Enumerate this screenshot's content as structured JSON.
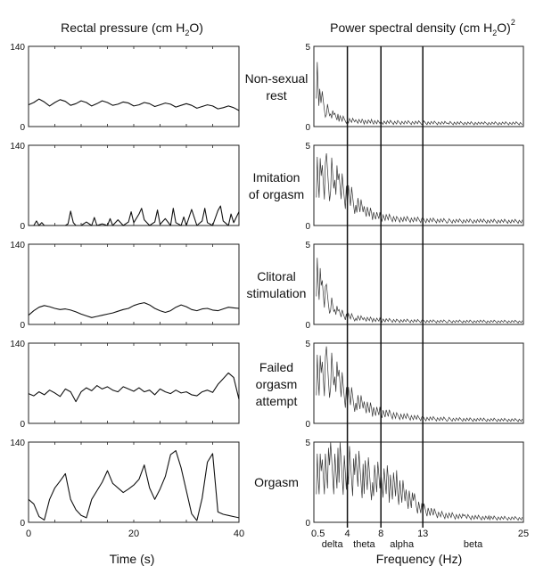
{
  "figure": {
    "left_title": {
      "main": "Rectal pressure (cm H",
      "sub": "2",
      "tail": "O)"
    },
    "right_title": {
      "main": "Power spectral density (cm H",
      "sub": "2",
      "tail": "O)",
      "sup": "2"
    },
    "left_xlabel": "Time (s)",
    "right_xlabel": "Frequency (Hz)",
    "conditions": [
      {
        "label_lines": [
          "Non-sexual",
          "rest"
        ]
      },
      {
        "label_lines": [
          "Imitation",
          "of orgasm"
        ]
      },
      {
        "label_lines": [
          "Clitoral",
          "stimulation"
        ]
      },
      {
        "label_lines": [
          "Failed",
          "orgasm",
          "attempt"
        ]
      },
      {
        "label_lines": [
          "Orgasm"
        ]
      }
    ],
    "band_labels": [
      "delta",
      "theta",
      "alpha",
      "beta"
    ]
  },
  "chart_data": [
    {
      "type": "line",
      "title": "Rectal pressure (cm H2O)",
      "xlabel": "Time (s)",
      "ylabel": "",
      "xlim": [
        0,
        40
      ],
      "ylim": [
        0,
        140
      ],
      "x_ticks": [
        0,
        20,
        40
      ],
      "y_ticks": [
        0,
        140
      ],
      "series": [
        {
          "x": [
            0,
            1,
            2,
            3,
            4,
            5,
            6,
            7,
            8,
            9,
            10,
            11,
            12,
            13,
            14,
            15,
            16,
            17,
            18,
            19,
            20,
            21,
            22,
            23,
            24,
            25,
            26,
            27,
            28,
            29,
            30,
            31,
            32,
            33,
            34,
            35,
            36,
            37,
            38,
            39,
            40
          ],
          "values": [
            38,
            42,
            48,
            43,
            36,
            42,
            47,
            44,
            37,
            40,
            45,
            42,
            36,
            40,
            45,
            42,
            37,
            39,
            43,
            41,
            36,
            38,
            42,
            40,
            35,
            38,
            41,
            39,
            34,
            37,
            40,
            37,
            32,
            35,
            38,
            36,
            31,
            33,
            36,
            33,
            28
          ]
        },
        {
          "x": [
            0,
            1,
            1.5,
            2,
            2.5,
            3,
            4,
            5,
            6,
            7,
            7.5,
            8,
            8.5,
            9,
            10,
            11,
            12,
            12.5,
            13,
            14,
            15,
            15.5,
            16,
            17,
            18,
            19,
            19.5,
            20,
            21,
            21.5,
            22,
            23,
            24,
            24.5,
            25,
            26,
            27,
            27.5,
            28,
            29,
            29.5,
            30,
            31,
            32,
            33,
            33.5,
            34,
            35,
            36,
            36.5,
            37,
            38,
            38.5,
            39,
            40
          ],
          "values": [
            0,
            0,
            8,
            0,
            5,
            0,
            0,
            0,
            0,
            0,
            3,
            25,
            5,
            0,
            0,
            6,
            0,
            14,
            0,
            3,
            0,
            12,
            0,
            10,
            0,
            6,
            24,
            5,
            20,
            30,
            10,
            0,
            6,
            27,
            2,
            12,
            0,
            30,
            5,
            0,
            15,
            0,
            28,
            0,
            8,
            30,
            5,
            0,
            26,
            34,
            8,
            0,
            20,
            5,
            24
          ]
        },
        {
          "x": [
            0,
            1,
            2,
            3,
            4,
            5,
            6,
            7,
            8,
            9,
            10,
            11,
            12,
            13,
            14,
            15,
            16,
            17,
            18,
            19,
            20,
            21,
            22,
            23,
            24,
            25,
            26,
            27,
            28,
            29,
            30,
            31,
            32,
            33,
            34,
            35,
            36,
            37,
            38,
            39,
            40
          ],
          "values": [
            16,
            24,
            30,
            33,
            31,
            28,
            26,
            27,
            25,
            22,
            18,
            15,
            12,
            14,
            16,
            18,
            20,
            23,
            26,
            28,
            33,
            36,
            38,
            34,
            28,
            24,
            21,
            24,
            30,
            34,
            31,
            26,
            24,
            27,
            28,
            25,
            24,
            27,
            30,
            29,
            28
          ]
        },
        {
          "x": [
            0,
            1,
            2,
            3,
            4,
            5,
            6,
            7,
            8,
            9,
            10,
            11,
            12,
            13,
            14,
            15,
            16,
            17,
            18,
            19,
            20,
            21,
            22,
            23,
            24,
            25,
            26,
            27,
            28,
            29,
            30,
            31,
            32,
            33,
            34,
            35,
            36,
            37,
            38,
            39,
            40
          ],
          "values": [
            52,
            48,
            55,
            50,
            58,
            53,
            47,
            60,
            55,
            38,
            55,
            62,
            57,
            66,
            60,
            64,
            58,
            55,
            64,
            60,
            56,
            62,
            55,
            58,
            50,
            60,
            55,
            52,
            58,
            53,
            55,
            50,
            48,
            55,
            58,
            54,
            68,
            78,
            88,
            80,
            42
          ]
        },
        {
          "x": [
            0,
            1,
            2,
            3,
            4,
            5,
            6,
            7,
            8,
            9,
            10,
            11,
            12,
            13,
            14,
            15,
            16,
            17,
            18,
            19,
            20,
            21,
            22,
            23,
            24,
            25,
            26,
            27,
            28,
            29,
            30,
            31,
            32,
            33,
            34,
            35,
            36,
            37,
            38,
            39,
            40
          ],
          "values": [
            40,
            32,
            10,
            4,
            40,
            60,
            72,
            85,
            40,
            22,
            12,
            8,
            40,
            55,
            70,
            90,
            68,
            60,
            52,
            58,
            65,
            75,
            100,
            60,
            40,
            58,
            80,
            118,
            125,
            95,
            55,
            15,
            3,
            42,
            105,
            120,
            18,
            14,
            12,
            10,
            8
          ]
        }
      ]
    },
    {
      "type": "line",
      "title": "Power spectral density (cm H2O)^2",
      "xlabel": "Frequency (Hz)",
      "ylabel": "",
      "xlim": [
        0,
        25
      ],
      "ylim": [
        0,
        5
      ],
      "x_ticks": [
        0.5,
        4,
        8,
        13,
        25
      ],
      "y_ticks": [
        0,
        5
      ],
      "band_boundaries": [
        4,
        8,
        13
      ],
      "bands": [
        "delta",
        "theta",
        "alpha",
        "beta"
      ],
      "series": [
        {
          "x": [
            0.3,
            0.5,
            0.7,
            1,
            1.5,
            2,
            2.5,
            3,
            4,
            5,
            6,
            7,
            8,
            10,
            13,
            16,
            20,
            25
          ],
          "values": [
            5,
            4.4,
            3.0,
            2.2,
            1.5,
            1.1,
            0.9,
            0.75,
            0.55,
            0.5,
            0.45,
            0.45,
            0.4,
            0.38,
            0.35,
            0.32,
            0.3,
            0.3
          ]
        },
        {
          "x": [
            0.3,
            0.5,
            1,
            1.5,
            2,
            2.5,
            3,
            4,
            5,
            6,
            7,
            8,
            10,
            13,
            16,
            20,
            25
          ],
          "values": [
            5,
            5,
            4.8,
            4.5,
            4.3,
            4.0,
            3.5,
            2.8,
            2.0,
            1.4,
            1.0,
            0.8,
            0.6,
            0.5,
            0.42,
            0.4,
            0.38
          ]
        },
        {
          "x": [
            0.3,
            0.5,
            1,
            1.5,
            2,
            2.5,
            3,
            4,
            5,
            6,
            7,
            8,
            10,
            13,
            16,
            20,
            25
          ],
          "values": [
            5,
            4.7,
            3.5,
            2.5,
            1.8,
            1.3,
            1.0,
            0.75,
            0.6,
            0.5,
            0.45,
            0.4,
            0.35,
            0.3,
            0.28,
            0.27,
            0.26
          ]
        },
        {
          "x": [
            0.3,
            0.5,
            1,
            1.5,
            2,
            2.5,
            3,
            4,
            5,
            6,
            7,
            8,
            10,
            13,
            16,
            20,
            25
          ],
          "values": [
            5,
            5,
            4.9,
            4.8,
            4.5,
            4.1,
            3.6,
            2.5,
            2.0,
            1.6,
            1.2,
            1.0,
            0.7,
            0.45,
            0.38,
            0.33,
            0.3
          ]
        },
        {
          "x": [
            0.3,
            0.5,
            1,
            2,
            3,
            4,
            5,
            6,
            7,
            8,
            9,
            10,
            11,
            12,
            13,
            15,
            18,
            21,
            25
          ],
          "values": [
            5,
            5,
            5,
            5,
            5,
            4.8,
            4.6,
            4.2,
            3.9,
            3.7,
            3.5,
            3.2,
            2.6,
            1.8,
            1.2,
            0.7,
            0.5,
            0.4,
            0.35
          ]
        }
      ]
    }
  ]
}
